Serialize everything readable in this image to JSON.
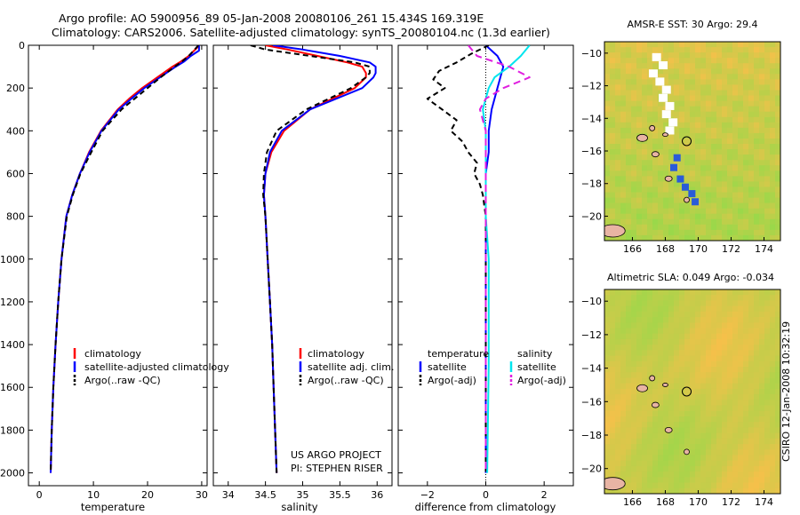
{
  "header": {
    "line1": "Argo profile: AO 5900956_89 05-Jan-2008 20080106_261 15.434S 169.319E",
    "line2": "Climatology: CARS2006. Satellite-adjusted climatology: synTS_20080104.nc (1.3d earlier)"
  },
  "footer": {
    "credit": "CSIRO 12-Jan-2008 10:32:19",
    "project_line1": "US ARGO PROJECT",
    "project_line2": "PI: STEPHEN RISER"
  },
  "colors": {
    "climatology": "#ff0000",
    "satellite": "#0000ff",
    "argo": "#000000",
    "salinity_satellite": "#00e5ee",
    "salinity_argo": "#e020e0",
    "map_land": "#e8b4a4",
    "map_bg_warm": "#f6c04a",
    "map_bg_green": "#9ad84a"
  },
  "chart_data": [
    {
      "id": "temperature",
      "type": "line",
      "xlabel": "temperature",
      "xlim": [
        -2,
        31
      ],
      "ylim": [
        0,
        2060
      ],
      "y_inverted": true,
      "xticks": [
        0,
        10,
        20,
        30
      ],
      "yticks": [
        0,
        200,
        400,
        600,
        800,
        1000,
        1200,
        1400,
        1600,
        1800,
        2000
      ],
      "legend": [
        "climatology",
        "satellite-adjusted climatology",
        "Argo(..raw -QC)"
      ],
      "series": [
        {
          "name": "climatology",
          "color": "#ff0000",
          "dash": "",
          "depth": [
            0,
            25,
            50,
            75,
            100,
            150,
            200,
            250,
            300,
            400,
            500,
            600,
            700,
            800,
            1000,
            1200,
            1400,
            1600,
            1800,
            2000
          ],
          "values": [
            29.6,
            28.6,
            27.6,
            26.2,
            24.6,
            21.8,
            19.0,
            16.6,
            14.5,
            11.4,
            9.2,
            7.5,
            6.1,
            5.0,
            4.1,
            3.5,
            3.0,
            2.6,
            2.3,
            2.1
          ]
        },
        {
          "name": "satellite-adjusted climatology",
          "color": "#0000ff",
          "dash": "",
          "depth": [
            0,
            25,
            50,
            75,
            100,
            150,
            200,
            250,
            300,
            400,
            500,
            600,
            700,
            800,
            1000,
            1200,
            1400,
            1600,
            1800,
            2000
          ],
          "values": [
            29.5,
            29.5,
            28.0,
            26.8,
            25.2,
            22.3,
            19.4,
            17.0,
            14.7,
            11.5,
            9.3,
            7.5,
            6.1,
            5.0,
            4.1,
            3.5,
            3.0,
            2.6,
            2.3,
            2.1
          ]
        },
        {
          "name": "Argo(..raw -QC)",
          "color": "#000000",
          "dash": "6,4",
          "depth": [
            0,
            25,
            50,
            75,
            100,
            150,
            200,
            250,
            300,
            400,
            500,
            600,
            700,
            800,
            1000,
            1200,
            1400,
            1600,
            1800,
            2000
          ],
          "values": [
            29.4,
            28.5,
            27.6,
            26.4,
            25.0,
            22.4,
            20.0,
            17.6,
            15.2,
            11.7,
            9.6,
            7.6,
            6.2,
            5.1,
            4.1,
            3.5,
            3.0,
            2.6,
            2.3,
            2.1
          ]
        }
      ]
    },
    {
      "id": "salinity",
      "type": "line",
      "xlabel": "salinity",
      "xlim": [
        33.8,
        36.2
      ],
      "ylim": [
        0,
        2060
      ],
      "y_inverted": true,
      "xticks": [
        34,
        34.5,
        35,
        35.5,
        36
      ],
      "legend": [
        "climatology",
        "satellite adj. clim.",
        "Argo(..raw -QC)"
      ],
      "series": [
        {
          "name": "climatology",
          "color": "#ff0000",
          "dash": "",
          "depth": [
            0,
            20,
            50,
            80,
            100,
            130,
            150,
            200,
            250,
            300,
            400,
            500,
            600,
            700,
            800,
            1000,
            1200,
            1400,
            1600,
            1800,
            2000
          ],
          "values": [
            34.5,
            34.8,
            35.2,
            35.6,
            35.8,
            35.85,
            35.85,
            35.7,
            35.4,
            35.1,
            34.75,
            34.58,
            34.5,
            34.48,
            34.5,
            34.53,
            34.56,
            34.59,
            34.61,
            34.63,
            34.65
          ]
        },
        {
          "name": "satellite adj. clim.",
          "color": "#0000ff",
          "dash": "",
          "depth": [
            0,
            20,
            50,
            80,
            100,
            130,
            150,
            200,
            250,
            300,
            400,
            500,
            600,
            700,
            800,
            1000,
            1200,
            1400,
            1600,
            1800,
            2000
          ],
          "values": [
            34.6,
            35.0,
            35.5,
            35.9,
            35.98,
            35.98,
            35.95,
            35.8,
            35.45,
            35.1,
            34.72,
            34.56,
            34.5,
            34.48,
            34.5,
            34.53,
            34.56,
            34.59,
            34.61,
            34.63,
            34.65
          ]
        },
        {
          "name": "Argo(..raw -QC)",
          "color": "#000000",
          "dash": "6,4",
          "depth": [
            0,
            20,
            50,
            80,
            100,
            130,
            150,
            200,
            250,
            300,
            400,
            500,
            600,
            700,
            800,
            1000,
            1200,
            1400,
            1600,
            1800,
            2000
          ],
          "values": [
            34.3,
            34.5,
            35.1,
            35.7,
            35.9,
            35.9,
            35.85,
            35.65,
            35.35,
            35.05,
            34.65,
            34.52,
            34.48,
            34.47,
            34.5,
            34.53,
            34.56,
            34.59,
            34.61,
            34.63,
            34.65
          ]
        }
      ]
    },
    {
      "id": "difference",
      "type": "line",
      "xlabel": "difference from climatology",
      "xlim": [
        -3,
        3
      ],
      "ylim": [
        0,
        2060
      ],
      "y_inverted": true,
      "xticks": [
        -2,
        0,
        2
      ],
      "legend_temperature_title": "temperature",
      "legend_salinity_title": "salinity",
      "legend_temperature": [
        "satellite",
        "Argo(-adj)"
      ],
      "legend_salinity": [
        "satellite",
        "Argo(-adj)"
      ],
      "series": [
        {
          "name": "temperature satellite",
          "color": "#0000ff",
          "dash": "",
          "depth": [
            0,
            50,
            100,
            150,
            200,
            300,
            400,
            500,
            600,
            800,
            1000,
            1200,
            1500,
            2000
          ],
          "values": [
            0,
            0.4,
            0.6,
            0.5,
            0.4,
            0.2,
            0.1,
            0.1,
            0,
            0,
            0,
            0,
            0,
            0
          ]
        },
        {
          "name": "temperature Argo(-adj)",
          "color": "#000000",
          "dash": "6,4",
          "depth": [
            0,
            40,
            80,
            120,
            160,
            200,
            250,
            300,
            350,
            400,
            450,
            500,
            550,
            600,
            650,
            700,
            800,
            1000,
            1200,
            1500,
            2000
          ],
          "values": [
            0.1,
            -0.5,
            -1.0,
            -1.6,
            -1.8,
            -1.4,
            -2.0,
            -1.5,
            -1.0,
            -1.2,
            -0.8,
            -0.6,
            -0.3,
            -0.4,
            -0.2,
            -0.1,
            0,
            0,
            0,
            0,
            0
          ]
        },
        {
          "name": "salinity satellite",
          "color": "#00e5ee",
          "dash": "",
          "depth": [
            0,
            50,
            100,
            150,
            200,
            250,
            300,
            400,
            500,
            700,
            800,
            1000,
            1500,
            2000
          ],
          "values": [
            1.5,
            1.2,
            0.8,
            0.3,
            0.1,
            0,
            -0.1,
            0,
            0,
            0,
            0,
            0.1,
            0.1,
            0.05
          ]
        },
        {
          "name": "salinity Argo(-adj)",
          "color": "#e020e0",
          "dash": "8,5",
          "depth": [
            0,
            50,
            100,
            150,
            200,
            250,
            300,
            400,
            500,
            700,
            800,
            1000,
            1500,
            2000
          ],
          "values": [
            -0.6,
            -0.3,
            0.8,
            1.5,
            0.6,
            0.0,
            -0.2,
            0,
            0,
            0,
            0,
            0,
            0,
            0
          ]
        }
      ]
    },
    {
      "id": "sst_map",
      "type": "heatmap",
      "title": "AMSR-E SST: 30 Argo: 29.4",
      "xticks": [
        166,
        168,
        170,
        172,
        174
      ],
      "yticks": [
        -10,
        -12,
        -14,
        -16,
        -18,
        -20
      ],
      "xlim": [
        164.3,
        175.0
      ],
      "ylim": [
        -21.5,
        -9.3
      ],
      "float_position": [
        169.3,
        -15.4
      ]
    },
    {
      "id": "sla_map",
      "type": "heatmap",
      "title": "Altimetric SLA: 0.049 Argo: -0.034",
      "xticks": [
        166,
        168,
        170,
        172,
        174
      ],
      "yticks": [
        -10,
        -12,
        -14,
        -16,
        -18,
        -20
      ],
      "xlim": [
        164.3,
        175.0
      ],
      "ylim": [
        -21.5,
        -9.3
      ],
      "float_position": [
        169.3,
        -15.4
      ]
    }
  ]
}
